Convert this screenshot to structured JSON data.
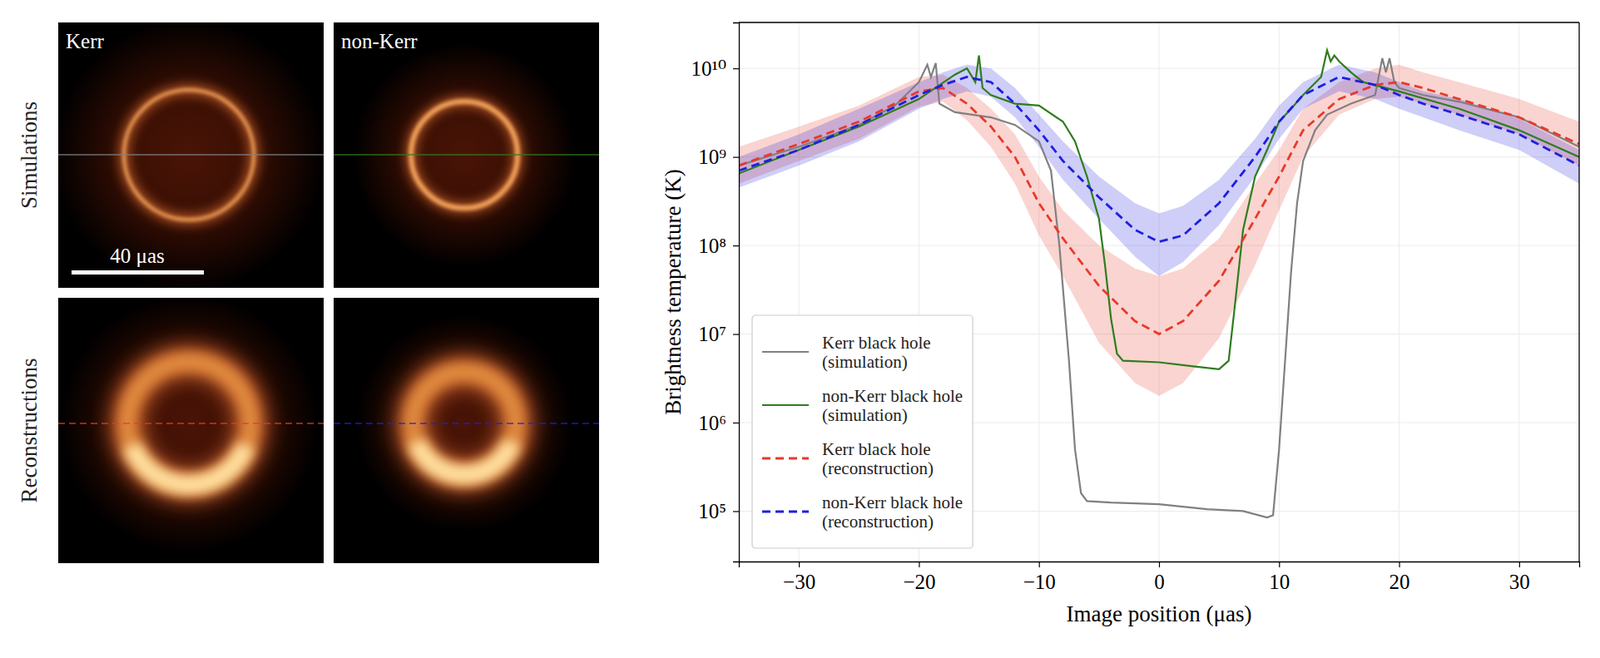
{
  "images": {
    "columns": [
      "Kerr",
      "non-Kerr"
    ],
    "rows": [
      "Simulations",
      "Reconstructions"
    ],
    "scale_bar": "40 μas"
  },
  "chart_data": {
    "type": "line",
    "xlabel": "Image position (μas)",
    "ylabel": "Brightness temperature (K)",
    "log": "y",
    "grid": true,
    "legend": "lower left",
    "xlim": [
      -35,
      35
    ],
    "xticks": [
      {
        "value": -30,
        "label": "−30"
      },
      {
        "value": -20,
        "label": "−20"
      },
      {
        "value": -10,
        "label": "−10"
      },
      0,
      10,
      20,
      30
    ],
    "ylim": [
      27000,
      33000000000
    ],
    "yticks": [
      {
        "value": 100000,
        "label": "10⁵"
      },
      {
        "value": 1000000,
        "label": "10⁶"
      },
      {
        "value": 10000000,
        "label": "10⁷"
      },
      {
        "value": 100000000,
        "label": "10⁸"
      },
      {
        "value": 1000000000,
        "label": "10⁹"
      },
      {
        "value": 10000000000,
        "label": "10¹⁰"
      }
    ],
    "series": [
      {
        "name": "Kerr black hole (simulation)",
        "color": "#808080",
        "line_style": "solid",
        "x": [
          -35,
          -30,
          -25,
          -22,
          -20,
          -19.3,
          -19,
          -18.6,
          -18.3,
          -17,
          -14,
          -12,
          -10,
          -9,
          -8.3,
          -7.5,
          -7,
          -6.5,
          -6,
          -4,
          0,
          4,
          7,
          9,
          9.5,
          10,
          10.5,
          11,
          11.5,
          12,
          13,
          14,
          16,
          18,
          18.6,
          18.9,
          19.2,
          19.6,
          20,
          22,
          25,
          30,
          35
        ],
        "values": [
          800000000,
          1300000000,
          2300000000,
          3800000000,
          7000000000,
          11000000000,
          8000000000,
          11500000000,
          4000000000,
          3200000000,
          2800000000,
          2300000000,
          1500000000,
          700000000,
          100000000,
          5000000,
          500000,
          160000,
          130000,
          125000,
          120000,
          105000,
          100000,
          85000,
          90000,
          500000,
          5000000,
          50000000,
          300000000,
          900000000,
          2000000000,
          3000000000,
          4000000000,
          5000000000,
          13000000000,
          9000000000,
          13000000000,
          7000000000,
          6000000000,
          5000000000,
          4200000000,
          2800000000,
          1300000000
        ]
      },
      {
        "name": "non-Kerr black hole (simulation)",
        "color": "#2e7d1e",
        "line_style": "solid",
        "x": [
          -35,
          -30,
          -25,
          -20,
          -17,
          -16,
          -15.3,
          -15,
          -14.7,
          -14,
          -12,
          -10,
          -8,
          -7,
          -6,
          -5,
          -4.5,
          -4,
          -3.5,
          -3,
          0,
          3,
          5,
          5.8,
          6.3,
          7,
          8,
          9,
          10,
          11,
          12,
          13.5,
          14,
          14.3,
          14.6,
          15,
          16,
          17,
          20,
          25,
          30,
          35
        ],
        "values": [
          650000000,
          1200000000,
          2200000000,
          4500000000,
          8500000000,
          10000000000,
          7000000000,
          14000000000,
          6000000000,
          5000000000,
          4000000000,
          3800000000,
          2500000000,
          1500000000,
          600000000,
          200000000,
          60000000,
          15000000,
          6000000,
          5000000,
          4800000,
          4300000,
          4000000,
          5000000,
          20000000,
          150000000,
          600000000,
          1200000000,
          2500000000,
          3500000000,
          5000000000,
          8000000000,
          16000000000,
          12000000000,
          14000000000,
          12000000000,
          9000000000,
          7000000000,
          5500000000,
          3500000000,
          2000000000,
          1000000000
        ]
      },
      {
        "name": "Kerr black hole (reconstruction)",
        "color": "#e8392b",
        "line_style": "dashed",
        "x": [
          -35,
          -30,
          -25,
          -20,
          -18,
          -16,
          -14,
          -12,
          -10,
          -8,
          -5,
          -2,
          0,
          2,
          5,
          8,
          10,
          12,
          15,
          18,
          20,
          22,
          25,
          30,
          35
        ],
        "values": [
          800000000,
          1400000000,
          2500000000,
          5500000000,
          6000000000,
          4000000000,
          2200000000,
          1000000000,
          300000000,
          120000000,
          35000000,
          14000000,
          10000000,
          14000000,
          40000000,
          200000000,
          600000000,
          2000000000,
          4500000000,
          6500000000,
          7000000000,
          6000000000,
          4500000000,
          2800000000,
          1400000000
        ],
        "lower": [
          500000000,
          900000000,
          1600000000,
          3700000000,
          4200000000,
          2600000000,
          1300000000,
          500000000,
          130000000,
          45000000,
          8000000,
          2800000,
          2000000,
          2800000,
          9000000,
          60000000,
          250000000,
          1000000000,
          3000000000,
          4500000000,
          4800000000,
          4000000000,
          3000000000,
          1800000000,
          800000000
        ],
        "upper": [
          1300000000,
          2200000000,
          3800000000,
          8000000000,
          8500000000,
          6000000000,
          3500000000,
          1800000000,
          600000000,
          250000000,
          100000000,
          55000000,
          45000000,
          55000000,
          120000000,
          500000000,
          1200000000,
          3500000000,
          7000000000,
          10000000000,
          11000000000,
          9000000000,
          7000000000,
          4500000000,
          2500000000
        ]
      },
      {
        "name": "non-Kerr black hole (reconstruction)",
        "color": "#1f1fe0",
        "line_style": "dashed",
        "x": [
          -35,
          -30,
          -25,
          -20,
          -18,
          -16,
          -14,
          -12,
          -10,
          -8,
          -5,
          -2,
          0,
          2,
          5,
          8,
          10,
          12,
          15,
          18,
          20,
          22,
          25,
          30,
          35
        ],
        "values": [
          700000000,
          1200000000,
          2300000000,
          5000000000,
          6500000000,
          8000000000,
          7000000000,
          4000000000,
          2000000000,
          900000000,
          350000000,
          150000000,
          110000000,
          130000000,
          300000000,
          1000000000,
          2500000000,
          5000000000,
          8000000000,
          6500000000,
          5000000000,
          4000000000,
          3000000000,
          1800000000,
          800000000
        ],
        "lower": [
          450000000,
          800000000,
          1500000000,
          3500000000,
          4500000000,
          5500000000,
          4800000000,
          2800000000,
          1300000000,
          550000000,
          200000000,
          75000000,
          45000000,
          65000000,
          170000000,
          600000000,
          1600000000,
          3500000000,
          5500000000,
          4500000000,
          3500000000,
          2800000000,
          2000000000,
          1200000000,
          500000000
        ],
        "upper": [
          1000000000,
          1800000000,
          3500000000,
          7000000000,
          9000000000,
          11000000000,
          10000000000,
          6000000000,
          3000000000,
          1500000000,
          600000000,
          300000000,
          230000000,
          280000000,
          550000000,
          1600000000,
          3800000000,
          7000000000,
          11000000000,
          9000000000,
          7000000000,
          5500000000,
          4500000000,
          2700000000,
          1200000000
        ]
      }
    ]
  }
}
